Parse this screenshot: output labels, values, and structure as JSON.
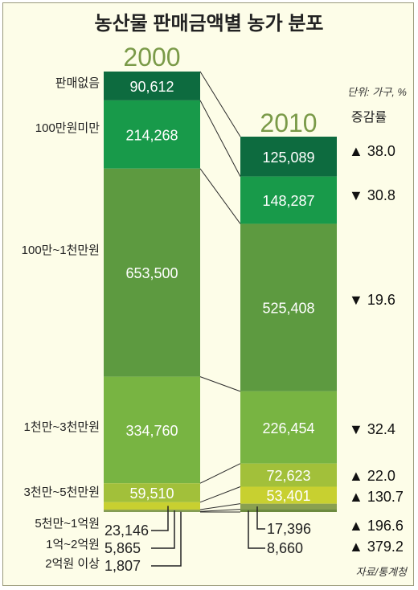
{
  "chart_data": {
    "type": "bar",
    "stacked": true,
    "title": "농산물 판매금액별 농가 분포",
    "unit_note": "단위: 가구, %",
    "change_header": "증감률",
    "source": "자료/통계청",
    "categories": [
      "판매없음",
      "100만원미만",
      "100만~1천만원",
      "1천만~3천만원",
      "3천만~5천만원",
      "5천만~1억원",
      "1억~2억원",
      "2억원 이상"
    ],
    "series": [
      {
        "name": "2000",
        "values": [
          90612,
          214268,
          653500,
          334760,
          59510,
          23146,
          5865,
          1807
        ],
        "labels": [
          "90,612",
          "214,268",
          "653,500",
          "334,760",
          "59,510",
          "23,146",
          "5,865",
          "1,807"
        ]
      },
      {
        "name": "2010",
        "values": [
          125089,
          148287,
          525408,
          226454,
          72623,
          53401,
          17396,
          8660
        ],
        "labels": [
          "125,089",
          "148,287",
          "525,408",
          "226,454",
          "72,623",
          "53,401",
          "17,396",
          "8,660"
        ]
      }
    ],
    "change": [
      {
        "dir": "up",
        "value": 38.0,
        "text": "▲ 38.0"
      },
      {
        "dir": "down",
        "value": -30.8,
        "text": "▼ 30.8"
      },
      {
        "dir": "down",
        "value": -19.6,
        "text": "▼ 19.6"
      },
      {
        "dir": "down",
        "value": -32.4,
        "text": "▼ 32.4"
      },
      {
        "dir": "up",
        "value": 22.0,
        "text": "▲ 22.0"
      },
      {
        "dir": "up",
        "value": 130.7,
        "text": "▲ 130.7"
      },
      {
        "dir": "up",
        "value": 196.6,
        "text": "▲ 196.6"
      },
      {
        "dir": "up",
        "value": 379.2,
        "text": "▲ 379.2"
      }
    ],
    "colors": [
      "#0d6b3f",
      "#189a4a",
      "#5d9a40",
      "#78b442",
      "#a2c03a",
      "#c8d030",
      "#8aa050",
      "#6c8a3e"
    ]
  }
}
